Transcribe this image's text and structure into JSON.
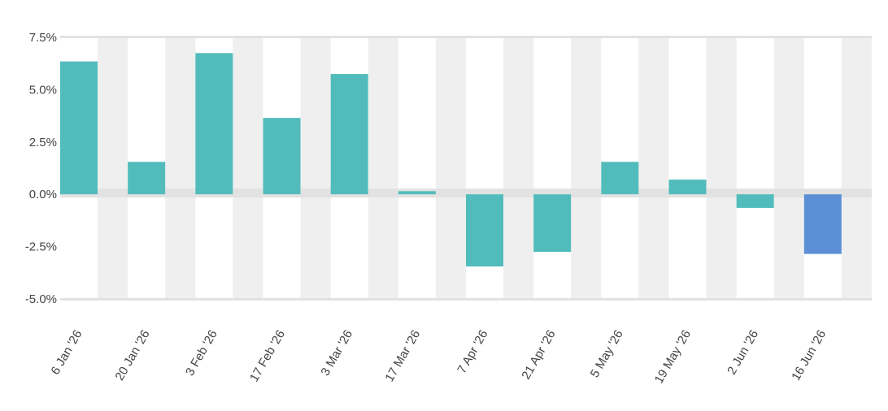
{
  "chart_data": {
    "type": "bar",
    "title": "",
    "xlabel": "",
    "ylabel": "",
    "categories": [
      "6 Jan '26",
      "20 Jan '26",
      "3 Feb '26",
      "17 Feb '26",
      "3 Mar '26",
      "17 Mar '26",
      "7 Apr '26",
      "21 Apr '26",
      "5 May '26",
      "19 May '26",
      "2 Jun '26",
      "16 Jun '26"
    ],
    "values": [
      6.35,
      1.55,
      6.75,
      3.65,
      5.75,
      0.15,
      -3.45,
      -2.75,
      1.55,
      0.7,
      -0.65,
      -2.85
    ],
    "ylim": [
      -5.0,
      7.5
    ],
    "yticks": [
      "7.5%",
      "5.0%",
      "2.5%",
      "0.0%",
      "-2.5%",
      "-5.0%"
    ],
    "ytick_values": [
      7.5,
      5.0,
      2.5,
      0.0,
      -2.5,
      -5.0
    ],
    "grid": false,
    "alternating_column_bands": true,
    "highlight_index": 11,
    "colors": {
      "bar": "#52bcbc",
      "highlight": "#5b8fd6",
      "band": "#efefef",
      "zero_line": "#e2e2e2",
      "text": "#444444"
    }
  }
}
